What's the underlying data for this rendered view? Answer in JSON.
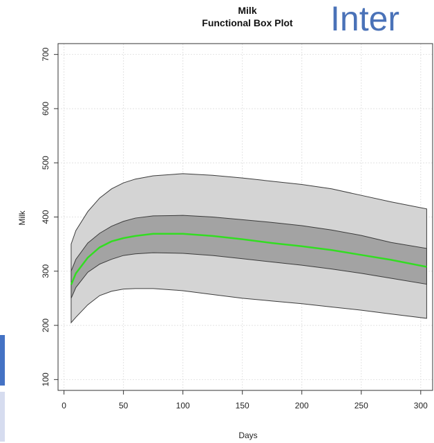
{
  "overlay": {
    "text": "Inter",
    "color": "#4a72b8",
    "tab_active_color": "#4472c4",
    "tab_inactive_color": "#d6dcef"
  },
  "chart_data": {
    "type": "area",
    "title": "Milk",
    "subtitle": "Functional Box Plot",
    "xlabel": "Days",
    "ylabel": "Milk",
    "xlim": [
      -5,
      310
    ],
    "ylim": [
      80,
      720
    ],
    "xticks": [
      0,
      50,
      100,
      150,
      200,
      250,
      300
    ],
    "yticks": [
      100,
      200,
      300,
      400,
      500,
      600,
      700
    ],
    "grid": true,
    "x": [
      6,
      10,
      20,
      30,
      40,
      50,
      60,
      75,
      100,
      125,
      150,
      175,
      200,
      225,
      250,
      275,
      305
    ],
    "envelope_upper": [
      350,
      375,
      410,
      435,
      452,
      463,
      470,
      476,
      480,
      477,
      472,
      466,
      460,
      452,
      440,
      428,
      415
    ],
    "envelope_lower": [
      205,
      215,
      238,
      255,
      263,
      267,
      268,
      268,
      264,
      257,
      250,
      245,
      240,
      234,
      228,
      221,
      213
    ],
    "central_upper": [
      300,
      322,
      352,
      370,
      383,
      392,
      398,
      402,
      403,
      400,
      395,
      390,
      384,
      376,
      366,
      353,
      342
    ],
    "central_lower": [
      250,
      270,
      298,
      313,
      322,
      329,
      332,
      334,
      333,
      329,
      323,
      317,
      311,
      304,
      296,
      287,
      276
    ],
    "median": [
      275,
      296,
      325,
      344,
      355,
      361,
      365,
      369,
      369,
      365,
      359,
      352,
      346,
      339,
      330,
      321,
      308
    ],
    "colors": {
      "envelope": "#d4d4d4",
      "central": "#a3a3a3",
      "outline": "#3a3a3a",
      "median": "#33dd22",
      "grid": "#e2e2e2"
    }
  }
}
